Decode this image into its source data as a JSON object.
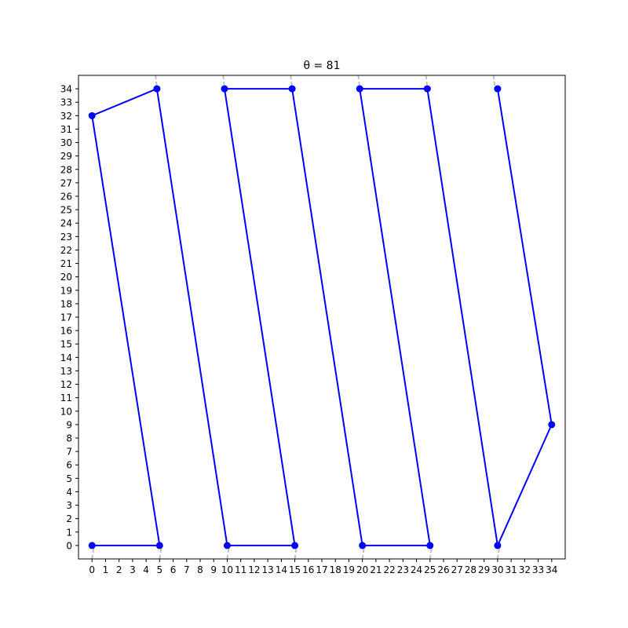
{
  "chart_data": {
    "type": "line",
    "title": "θ = 81",
    "xlabel": "",
    "ylabel": "",
    "xlim": [
      -1,
      35
    ],
    "ylim": [
      -1,
      35
    ],
    "x_ticks": [
      0,
      1,
      2,
      3,
      4,
      5,
      6,
      7,
      8,
      9,
      10,
      11,
      12,
      13,
      14,
      15,
      16,
      17,
      18,
      19,
      20,
      21,
      22,
      23,
      24,
      25,
      26,
      27,
      28,
      29,
      30,
      31,
      32,
      33,
      34
    ],
    "y_ticks": [
      0,
      1,
      2,
      3,
      4,
      5,
      6,
      7,
      8,
      9,
      10,
      11,
      12,
      13,
      14,
      15,
      16,
      17,
      18,
      19,
      20,
      21,
      22,
      23,
      24,
      25,
      26,
      27,
      28,
      29,
      30,
      31,
      32,
      33,
      34
    ],
    "grid": false,
    "series": [
      {
        "color": "#0000ff",
        "points": [
          [
            0,
            0
          ],
          [
            5,
            0
          ],
          [
            0,
            32
          ],
          [
            4.8,
            34
          ],
          [
            10,
            0
          ],
          [
            15,
            0
          ],
          [
            9.8,
            34
          ],
          [
            14.8,
            34
          ],
          [
            20,
            0
          ],
          [
            25,
            0
          ],
          [
            19.8,
            34
          ],
          [
            24.8,
            34
          ],
          [
            30,
            0
          ],
          [
            34,
            9
          ],
          [
            30,
            34
          ]
        ]
      }
    ],
    "guide_color": "#c0c0c0",
    "guides": [
      [
        [
          0,
          -1
        ],
        [
          0.15,
          0
        ]
      ],
      [
        [
          5,
          -1
        ],
        [
          5.15,
          0
        ]
      ],
      [
        [
          10,
          -1
        ],
        [
          10.15,
          0
        ]
      ],
      [
        [
          15,
          -1
        ],
        [
          15.15,
          0
        ]
      ],
      [
        [
          20,
          -1
        ],
        [
          20.15,
          0
        ]
      ],
      [
        [
          25,
          -1
        ],
        [
          25.15,
          0
        ]
      ],
      [
        [
          30,
          -1
        ],
        [
          30.15,
          0
        ]
      ],
      [
        [
          4.7,
          35
        ],
        [
          4.8,
          34
        ]
      ],
      [
        [
          9.7,
          35
        ],
        [
          9.8,
          34
        ]
      ],
      [
        [
          14.7,
          35
        ],
        [
          14.8,
          34
        ]
      ],
      [
        [
          19.7,
          35
        ],
        [
          19.8,
          34
        ]
      ],
      [
        [
          24.7,
          35
        ],
        [
          24.8,
          34
        ]
      ],
      [
        [
          29.7,
          35
        ],
        [
          29.8,
          34
        ]
      ]
    ]
  }
}
